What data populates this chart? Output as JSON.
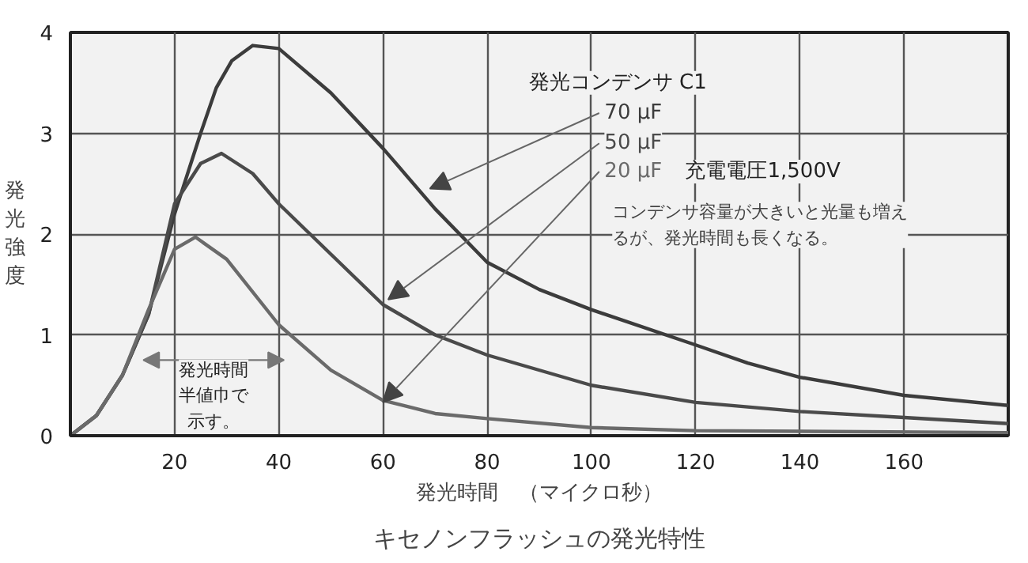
{
  "chart_data": {
    "type": "line",
    "title": "キセノンフラッシュの発光特性",
    "xlabel": "発光時間　（マイクロ秒）",
    "ylabel": "発光強度",
    "legend_title": "発光コンデンサ C1",
    "xlim": [
      0,
      180
    ],
    "ylim": [
      0,
      4
    ],
    "xticks": [
      20,
      40,
      60,
      80,
      100,
      120,
      140,
      160
    ],
    "yticks": [
      0,
      1,
      2,
      3,
      4
    ],
    "grid": true,
    "annotations": [
      "充電電圧1,500V",
      "コンデンサ容量が大きいと光量も増えるが、発光時間も長くなる。",
      "発光時間半値巾で示す。"
    ],
    "series": [
      {
        "name": "70 μF",
        "color": "#3c3c3c",
        "x": [
          0,
          5,
          10,
          15,
          20,
          25,
          28,
          31,
          35,
          40,
          50,
          60,
          70,
          80,
          90,
          100,
          120,
          130,
          140,
          160,
          180
        ],
        "values": [
          0,
          0.2,
          0.6,
          1.2,
          2.2,
          3.0,
          3.45,
          3.72,
          3.87,
          3.84,
          3.4,
          2.85,
          2.25,
          1.72,
          1.45,
          1.25,
          0.9,
          0.72,
          0.58,
          0.4,
          0.3
        ]
      },
      {
        "name": "50 μF",
        "color": "#4a4a4a",
        "x": [
          0,
          5,
          10,
          15,
          20,
          25,
          29,
          35,
          40,
          50,
          60,
          70,
          80,
          100,
          120,
          140,
          160,
          180
        ],
        "values": [
          0,
          0.2,
          0.6,
          1.2,
          2.3,
          2.7,
          2.8,
          2.6,
          2.3,
          1.8,
          1.3,
          1.0,
          0.8,
          0.5,
          0.33,
          0.24,
          0.18,
          0.12
        ]
      },
      {
        "name": "20 μF",
        "color": "#6a6a6a",
        "x": [
          0,
          5,
          10,
          15,
          20,
          24,
          30,
          40,
          50,
          60,
          70,
          80,
          100,
          120,
          180
        ],
        "values": [
          0,
          0.2,
          0.6,
          1.25,
          1.85,
          1.97,
          1.75,
          1.1,
          0.65,
          0.35,
          0.22,
          0.17,
          0.08,
          0.05,
          0.03
        ]
      }
    ]
  }
}
